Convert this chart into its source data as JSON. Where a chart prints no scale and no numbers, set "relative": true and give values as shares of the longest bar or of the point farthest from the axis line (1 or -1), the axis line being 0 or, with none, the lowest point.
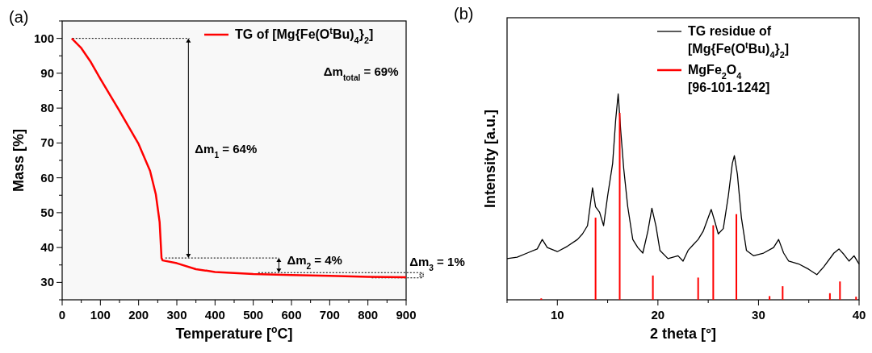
{
  "chart_data": [
    {
      "type": "line",
      "title": "(a)",
      "xlabel": "Temperature [$^{o}$C]",
      "ylabel": "Mass [%]",
      "xlim": [
        0,
        900
      ],
      "ylim": [
        25,
        105
      ],
      "xticks": [
        0,
        {
          "value": 50,
          "label": null
        },
        100,
        {
          "value": 150,
          "label": null
        },
        200,
        {
          "value": 250,
          "label": null
        },
        300,
        {
          "value": 350,
          "label": null
        },
        400,
        {
          "value": 450,
          "label": null
        },
        500,
        {
          "value": 550,
          "label": null
        },
        600,
        {
          "value": 650,
          "label": null
        },
        700,
        {
          "value": 750,
          "label": null
        },
        800,
        {
          "value": 850,
          "label": null
        },
        900
      ],
      "yticks": [
        {
          "value": 25,
          "label": null
        },
        30,
        {
          "value": 35,
          "label": null
        },
        40,
        {
          "value": 45,
          "label": null
        },
        50,
        {
          "value": 55,
          "label": null
        },
        60,
        {
          "value": 65,
          "label": null
        },
        70,
        {
          "value": 75,
          "label": null
        },
        80,
        {
          "value": 85,
          "label": null
        },
        90,
        {
          "value": 95,
          "label": null
        },
        100,
        {
          "value": 105,
          "label": null
        }
      ],
      "series": [
        {
          "name": "TG of [Mg{Fe(O$^{t}$Bu)$_{4}$}$_{2}$]",
          "color": "#ff0000",
          "x": [
            25,
            50,
            75,
            100,
            150,
            200,
            230,
            245,
            255,
            260,
            263,
            300,
            350,
            400,
            500,
            600,
            700,
            800,
            900
          ],
          "values": [
            100,
            97.2,
            93.2,
            88.4,
            79.2,
            69.7,
            62,
            55.3,
            47.3,
            37,
            36.3,
            35.5,
            33.8,
            33,
            32.4,
            32.1,
            31.9,
            31.6,
            31.5
          ]
        }
      ],
      "legend": "top right",
      "ref_lines": [
        {
          "axis": "y",
          "value": 100,
          "color": "#000000",
          "line_style": "dotted"
        },
        {
          "axis": "y",
          "value": 37,
          "color": "#000000",
          "line_style": "dotted"
        },
        {
          "axis": "y",
          "value": 32.8,
          "color": "#000000",
          "line_style": "dotted"
        },
        {
          "axis": "y",
          "value": 31.3,
          "color": "#000000",
          "line_style": "dotted"
        }
      ],
      "annotations": [
        "Δm$_{total}$ = 69%",
        "Δm$_{1}$ = 64%",
        "Δm$_{2}$ = 4%",
        "Δm$_{3}$ = 1%"
      ]
    },
    {
      "type": "line",
      "title": "(b)",
      "xlabel": "2 theta [°]",
      "ylabel": "Intensity [a.u.]",
      "relative": true,
      "xlim": [
        5,
        40
      ],
      "xticks": [
        {
          "value": 5,
          "label": null
        },
        10,
        {
          "value": 15,
          "label": null
        },
        20,
        {
          "value": 25,
          "label": null
        },
        30,
        {
          "value": 35,
          "label": null
        },
        40
      ],
      "legend": "top right",
      "series": [
        {
          "name": "TG residue of [Mg{Fe(O$^{t}$Bu)$_{4}$}$_{2}$]",
          "color": "#000000",
          "type": "line",
          "x": [
            5,
            6,
            7,
            8,
            8.5,
            9,
            10,
            11,
            12,
            12.5,
            13,
            13.5,
            13.8,
            14.2,
            14.6,
            15,
            15.5,
            15.8,
            16.05,
            16.3,
            16.6,
            17,
            17.5,
            18,
            18.5,
            19,
            19.4,
            19.8,
            20.2,
            21,
            22,
            22.5,
            23,
            23.5,
            24,
            24.5,
            25,
            25.3,
            25.7,
            26,
            26.5,
            27,
            27.4,
            27.6,
            27.9,
            28.3,
            28.8,
            29.5,
            30.5,
            31.5,
            32,
            32.5,
            33,
            34,
            35,
            35.8,
            36.5,
            37.5,
            38,
            38.5,
            39,
            39.5,
            40
          ],
          "values": [
            0.2,
            0.207,
            0.227,
            0.247,
            0.293,
            0.254,
            0.234,
            0.26,
            0.293,
            0.32,
            0.36,
            0.544,
            0.452,
            0.425,
            0.36,
            0.505,
            0.663,
            0.874,
            1,
            0.822,
            0.637,
            0.452,
            0.293,
            0.254,
            0.227,
            0.333,
            0.445,
            0.36,
            0.24,
            0.2,
            0.214,
            0.188,
            0.24,
            0.267,
            0.293,
            0.333,
            0.399,
            0.439,
            0.373,
            0.32,
            0.346,
            0.505,
            0.663,
            0.7,
            0.61,
            0.399,
            0.24,
            0.214,
            0.227,
            0.254,
            0.293,
            0.227,
            0.188,
            0.174,
            0.148,
            0.122,
            0.161,
            0.227,
            0.247,
            0.22,
            0.188,
            0.214,
            0.174
          ]
        },
        {
          "name": "MgFe$_{2}$O$_{4}$ [96-101-1242]",
          "color": "#ff0000",
          "type": "bar",
          "x": [
            8.4,
            13.8,
            16.2,
            19.5,
            24,
            25.5,
            27.8,
            31.1,
            32.4,
            37.1,
            38.1,
            39.7
          ],
          "values": [
            0.007,
            0.399,
            0.908,
            0.118,
            0.108,
            0.362,
            0.416,
            0.018,
            0.066,
            0.032,
            0.089,
            0.015
          ]
        }
      ]
    }
  ]
}
